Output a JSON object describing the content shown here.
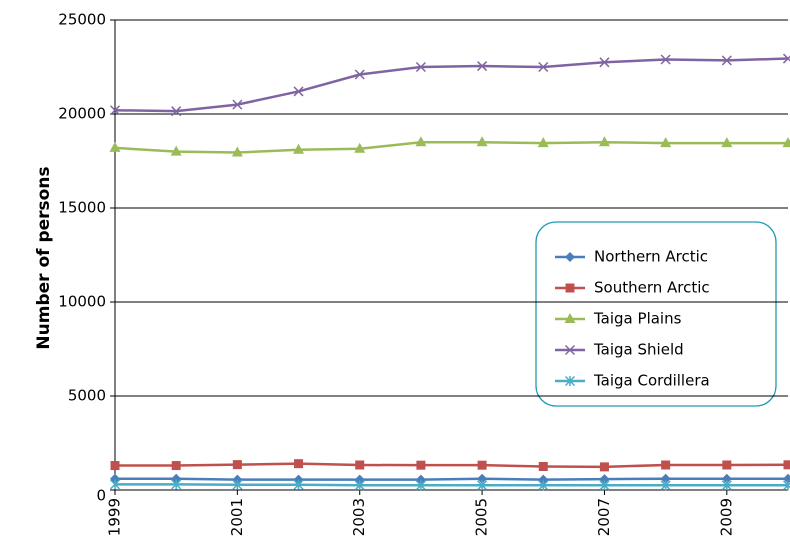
{
  "chart_data": {
    "type": "line",
    "y_label": "Number of persons",
    "x": [
      1999,
      2000,
      2001,
      2002,
      2003,
      2004,
      2005,
      2006,
      2007,
      2008,
      2009,
      2010
    ],
    "xlim": [
      1999,
      2010
    ],
    "xticks": [
      1999,
      2001,
      2003,
      2005,
      2007,
      2009
    ],
    "ylim": [
      0,
      25000
    ],
    "yticks": [
      0,
      5000,
      10000,
      15000,
      20000,
      25000
    ],
    "grid": true,
    "legend": "right",
    "series": [
      {
        "name": "Northern Arctic",
        "color": "#4a7ebb",
        "marker": "diamond",
        "values": [
          600,
          600,
          550,
          550,
          550,
          550,
          600,
          550,
          580,
          600,
          600,
          600
        ]
      },
      {
        "name": "Southern Arctic",
        "color": "#c0504d",
        "marker": "square",
        "values": [
          1300,
          1300,
          1350,
          1400,
          1330,
          1320,
          1320,
          1250,
          1230,
          1330,
          1330,
          1340
        ]
      },
      {
        "name": "Taiga Plains",
        "color": "#9bbb59",
        "marker": "triangle",
        "values": [
          18200,
          18000,
          17950,
          18100,
          18150,
          18500,
          18500,
          18450,
          18500,
          18450,
          18450,
          18450
        ]
      },
      {
        "name": "Taiga Shield",
        "color": "#8064a2",
        "marker": "x",
        "values": [
          20200,
          20150,
          20500,
          21200,
          22100,
          22500,
          22550,
          22500,
          22750,
          22900,
          22850,
          22950
        ]
      },
      {
        "name": "Taiga Cordillera",
        "color": "#4bacc6",
        "marker": "star",
        "values": [
          300,
          300,
          280,
          280,
          250,
          250,
          250,
          250,
          250,
          250,
          250,
          250
        ]
      }
    ]
  }
}
